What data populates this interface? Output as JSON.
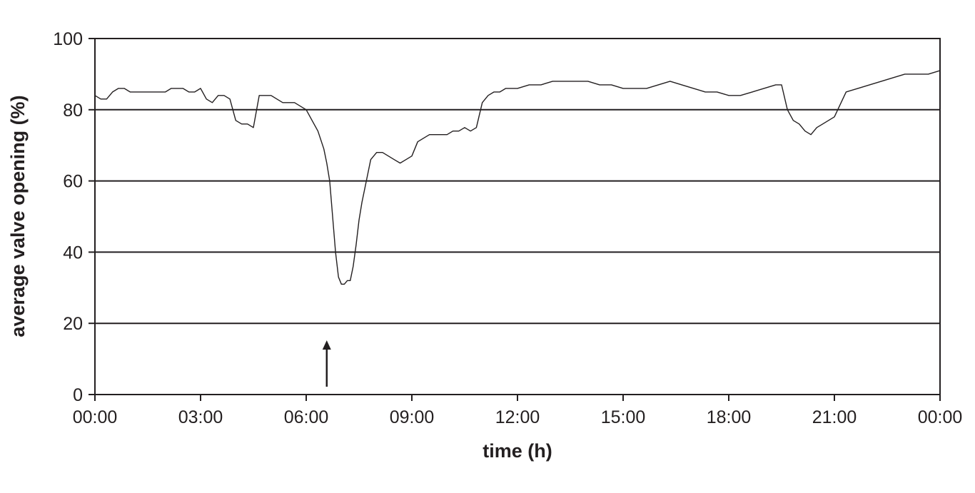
{
  "chart_data": {
    "type": "line",
    "title": "",
    "xlabel": "time (h)",
    "ylabel": "average valve opening (%)",
    "ylim": [
      0,
      100
    ],
    "xlim": [
      "00:00",
      "24:00"
    ],
    "grid": "horizontal",
    "yticks": [
      0,
      20,
      40,
      60,
      80,
      100
    ],
    "xtick_labels": [
      "00:00",
      "03:00",
      "06:00",
      "09:00",
      "12:00",
      "15:00",
      "18:00",
      "21:00",
      "00:00"
    ],
    "annotations": [
      {
        "type": "arrow",
        "x": "06:35",
        "direction": "up"
      }
    ],
    "series": [
      {
        "x": [
          "00:00",
          "00:10",
          "00:20",
          "00:30",
          "00:40",
          "00:50",
          "01:00",
          "01:10",
          "01:20",
          "01:30",
          "01:40",
          "01:50",
          "02:00",
          "02:10",
          "02:20",
          "02:30",
          "02:40",
          "02:50",
          "03:00",
          "03:10",
          "03:20",
          "03:30",
          "03:40",
          "03:50",
          "04:00",
          "04:10",
          "04:20",
          "04:30",
          "04:40",
          "04:50",
          "05:00",
          "05:10",
          "05:20",
          "05:30",
          "05:40",
          "05:50",
          "06:00",
          "06:10",
          "06:20",
          "06:30",
          "06:35",
          "06:40",
          "06:45",
          "06:50",
          "06:55",
          "07:00",
          "07:05",
          "07:10",
          "07:15",
          "07:20",
          "07:25",
          "07:30",
          "07:35",
          "07:40",
          "07:45",
          "07:50",
          "08:00",
          "08:10",
          "08:20",
          "08:30",
          "08:40",
          "08:50",
          "09:00",
          "09:10",
          "09:20",
          "09:30",
          "09:40",
          "09:50",
          "10:00",
          "10:10",
          "10:20",
          "10:30",
          "10:40",
          "10:50",
          "11:00",
          "11:10",
          "11:20",
          "11:30",
          "11:40",
          "11:50",
          "12:00",
          "12:20",
          "12:40",
          "13:00",
          "13:20",
          "13:40",
          "14:00",
          "14:20",
          "14:40",
          "15:00",
          "15:20",
          "15:40",
          "16:00",
          "16:20",
          "16:40",
          "17:00",
          "17:20",
          "17:40",
          "18:00",
          "18:20",
          "18:40",
          "19:00",
          "19:20",
          "19:30",
          "19:40",
          "19:50",
          "20:00",
          "20:10",
          "20:20",
          "20:30",
          "20:40",
          "20:50",
          "21:00",
          "21:20",
          "21:40",
          "22:00",
          "22:20",
          "22:40",
          "23:00",
          "23:20",
          "23:40",
          "24:00"
        ],
        "y": [
          84,
          83,
          83,
          85,
          86,
          86,
          85,
          85,
          85,
          85,
          85,
          85,
          85,
          86,
          86,
          86,
          85,
          85,
          86,
          83,
          82,
          84,
          84,
          83,
          77,
          76,
          76,
          75,
          84,
          84,
          84,
          83,
          82,
          82,
          82,
          81,
          80,
          77,
          74,
          69,
          65,
          60,
          50,
          40,
          33,
          31,
          31,
          32,
          32,
          36,
          42,
          49,
          54,
          58,
          62,
          66,
          68,
          68,
          67,
          66,
          65,
          66,
          67,
          71,
          72,
          73,
          73,
          73,
          73,
          74,
          74,
          75,
          74,
          75,
          82,
          84,
          85,
          85,
          86,
          86,
          86,
          87,
          87,
          88,
          88,
          88,
          88,
          87,
          87,
          86,
          86,
          86,
          87,
          88,
          87,
          86,
          85,
          85,
          84,
          84,
          85,
          86,
          87,
          87,
          80,
          77,
          76,
          74,
          73,
          75,
          76,
          77,
          78,
          85,
          86,
          87,
          88,
          89,
          90,
          90,
          90,
          91
        ]
      }
    ]
  }
}
